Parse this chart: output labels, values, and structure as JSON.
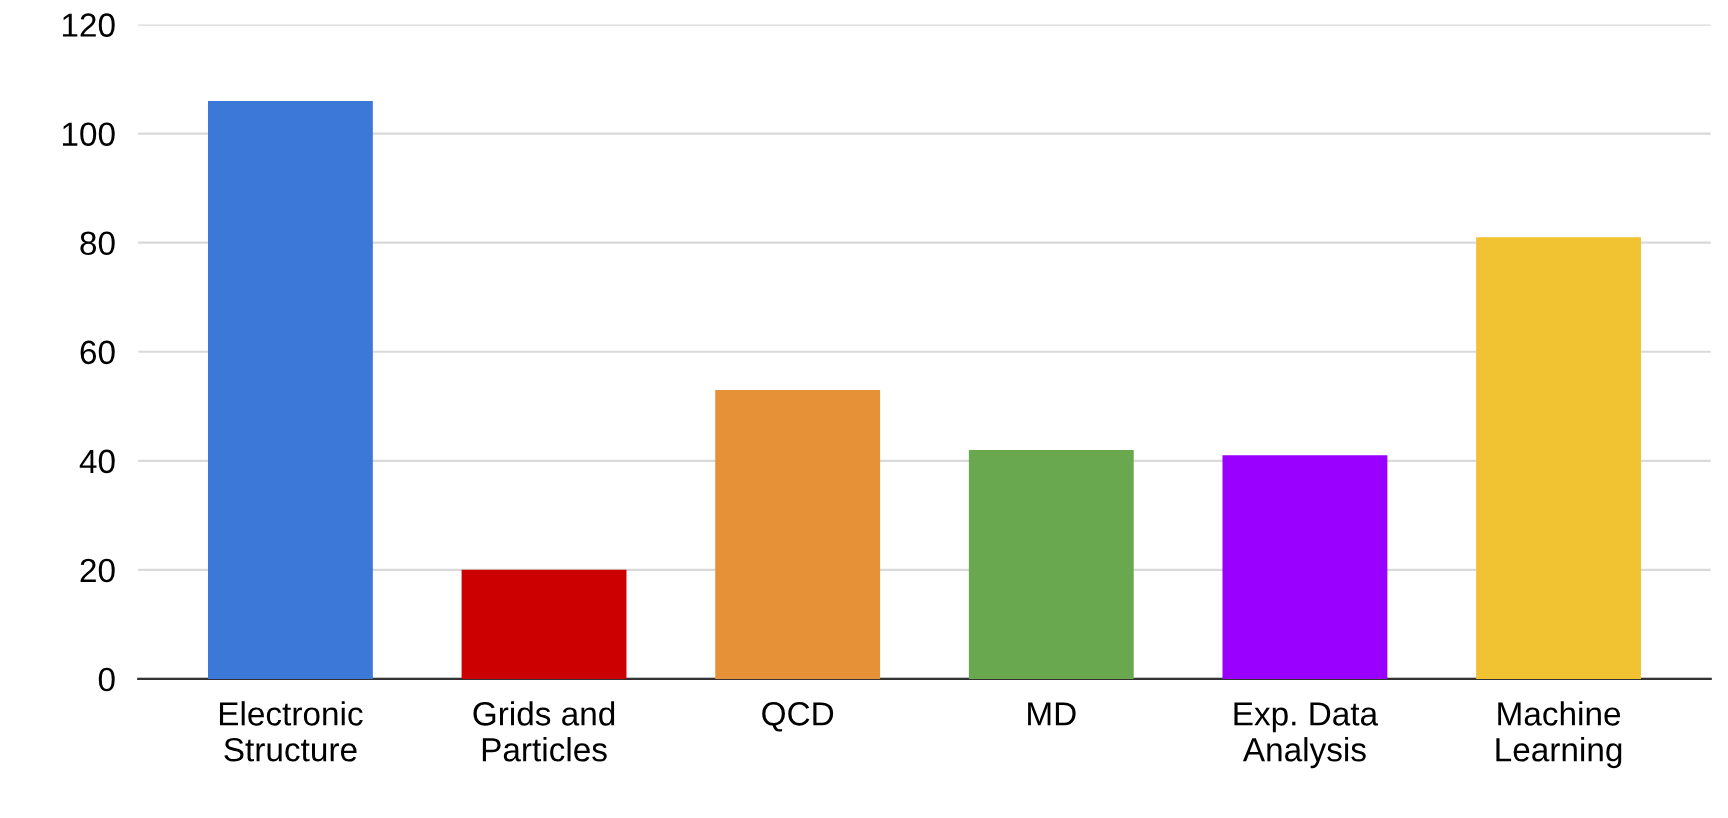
{
  "chart_data": {
    "type": "bar",
    "categories": [
      "Electronic\nStructure",
      "Grids and\nParticles",
      "QCD",
      "MD",
      "Exp. Data\nAnalysis",
      "Machine\nLearning"
    ],
    "values": [
      106,
      20,
      53,
      42,
      41,
      81
    ],
    "colors": [
      "#3c78d8",
      "#cc0000",
      "#e69138",
      "#6aa84f",
      "#9900ff",
      "#f1c232"
    ],
    "ylim": [
      0,
      120
    ],
    "yticks": [
      0,
      20,
      40,
      60,
      80,
      100,
      120
    ],
    "grid": "y"
  }
}
